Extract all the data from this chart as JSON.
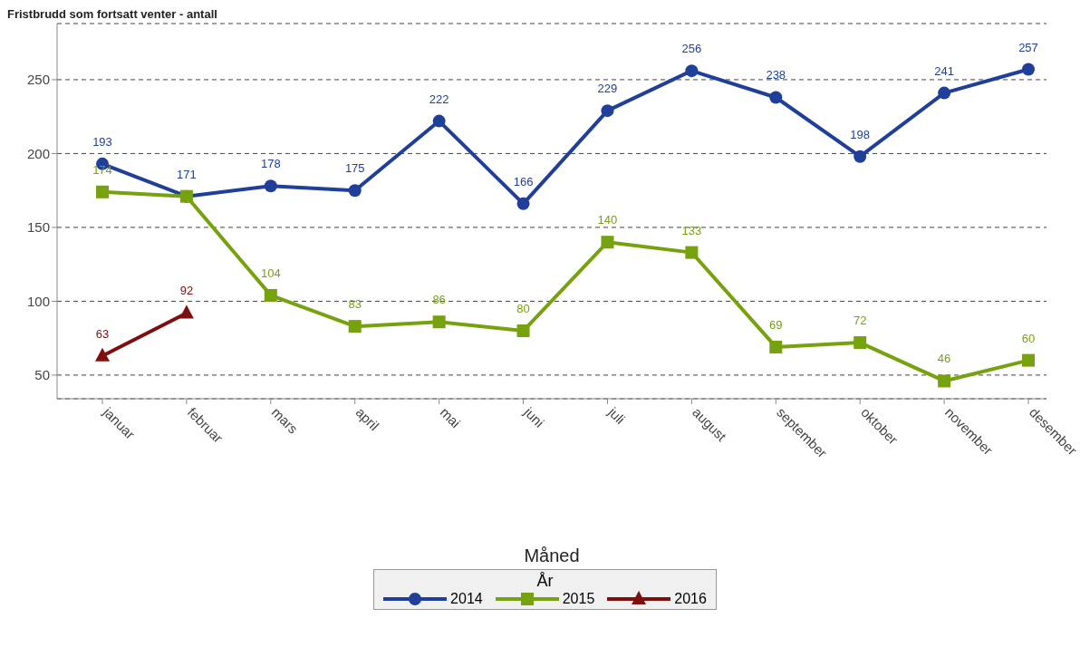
{
  "chart_data": {
    "type": "line",
    "title": "Fristbrudd som fortsatt venter - antall",
    "xlabel": "Måned",
    "legend_title": "År",
    "categories": [
      "januar",
      "februar",
      "mars",
      "april",
      "mai",
      "juni",
      "juli",
      "august",
      "september",
      "oktober",
      "november",
      "desember"
    ],
    "series": [
      {
        "name": "2014",
        "color": "#1f3f99",
        "marker": "circle",
        "values": [
          193,
          171,
          178,
          175,
          222,
          166,
          229,
          256,
          238,
          198,
          241,
          257
        ],
        "value_labels": [
          "193",
          "171",
          "178",
          "175",
          "222",
          "166",
          "229",
          "256",
          "238",
          "198",
          "241",
          "257"
        ]
      },
      {
        "name": "2015",
        "color": "#77a20f",
        "marker": "square",
        "values": [
          174,
          171,
          104,
          83,
          86,
          80,
          140,
          133,
          69,
          72,
          46,
          60
        ],
        "value_labels": [
          "174",
          null,
          "104",
          "83",
          "86",
          "80",
          "140",
          "133",
          "69",
          "72",
          "46",
          "60"
        ]
      },
      {
        "name": "2016",
        "color": "#7f0f0f",
        "marker": "triangle",
        "values": [
          63,
          92,
          null,
          null,
          null,
          null,
          null,
          null,
          null,
          null,
          null,
          null
        ],
        "value_labels": [
          "63",
          "92",
          null,
          null,
          null,
          null,
          null,
          null,
          null,
          null,
          null,
          null
        ]
      }
    ],
    "ylim": [
      34,
      288
    ],
    "yticks": [
      50,
      100,
      150,
      200,
      250
    ],
    "grid": "y",
    "legend": "bottom",
    "line_style": "solid"
  }
}
